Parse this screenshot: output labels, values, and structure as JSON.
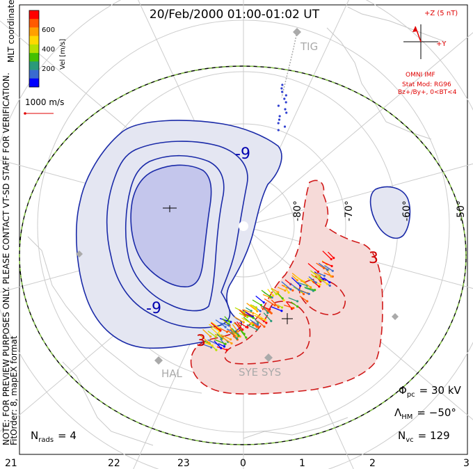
{
  "title": "20/Feb/2000 01:00-01:02 UT",
  "side_notes": {
    "line1": "NOTE: FOR PREVIEW PURPOSES ONLY. PLEASE CONTACT VT-SD STAFF FOR VERIFICATION.",
    "line2": "FitOrder: 8, mapEX format",
    "coords": "MLT coordinates"
  },
  "colorbar": {
    "label": "Vel [m/s]",
    "ticks": [
      "600",
      "400",
      "200"
    ],
    "colors": [
      "#ff0000",
      "#ff5a00",
      "#ffa000",
      "#ffd800",
      "#b8e000",
      "#44c000",
      "#2a9a7a",
      "#3a6ad0",
      "#0000ff"
    ]
  },
  "vector_scale_label": "1000 m/s",
  "imf": {
    "title": "+Z (5 nT)",
    "y_label": "+Y",
    "source": "OMNI IMF",
    "model_line1": "Stat Mod: RG96",
    "model_line2": "Bz+/By+, 0<BT<4"
  },
  "stations": [
    "TIG",
    "HAL",
    "SYE SYS"
  ],
  "latitude_labels": [
    "-80°",
    "-70°",
    "-60°",
    "-50°"
  ],
  "mlt_labels": [
    "21",
    "22",
    "23",
    "0",
    "1",
    "2",
    "3"
  ],
  "contour_labels": {
    "neg1": "-9",
    "neg2": "-9",
    "pos1": "3",
    "pos2": "3"
  },
  "stats": {
    "phi_pc_symbol": "Φ",
    "phi_pc_sub": "pc",
    "phi_pc_value": "= 30 kV",
    "lambda_symbol": "Λ",
    "lambda_sub": "HM",
    "lambda_value": "= −50°",
    "nvc_symbol": "N",
    "nvc_sub": "vc",
    "nvc_value": "= 129",
    "nrads_symbol": "N",
    "nrads_sub": "rads",
    "nrads_value": "= 4"
  },
  "map_colors": {
    "negative_fill": "#e4e6f2",
    "negative_core_fill": "#c4c6ec",
    "positive_fill": "#f6dad8",
    "negative_line": "#1a2aa8",
    "positive_line": "#d01818",
    "boundary_dash": "#88cc44"
  }
}
